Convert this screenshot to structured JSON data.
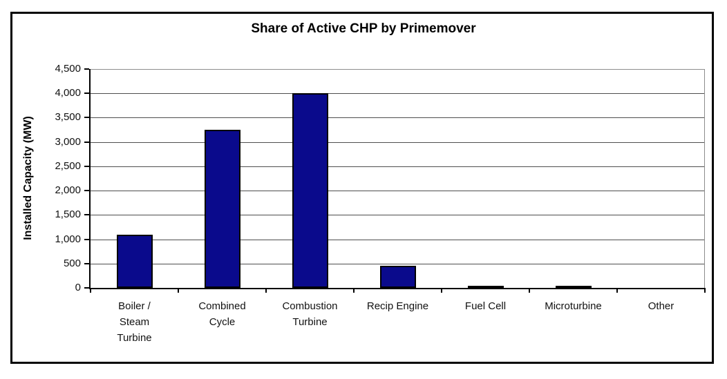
{
  "figure": {
    "background": "#ffffff",
    "frame_border_color": "#000000"
  },
  "chart_data": {
    "type": "bar",
    "title": "Share of Active CHP by Primemover",
    "xlabel": "",
    "ylabel": "Installed Capacity (MW)",
    "categories": [
      "Boiler /\nSteam\nTurbine",
      "Combined\nCycle",
      "Combustion\nTurbine",
      "Recip Engine",
      "Fuel Cell",
      "Microturbine",
      "Other"
    ],
    "values": [
      1100,
      3250,
      4000,
      450,
      40,
      40,
      0
    ],
    "ylim": [
      0,
      4500
    ],
    "ytick_step": 500,
    "ytick_labels": [
      "0",
      "500",
      "1,000",
      "1,500",
      "2,000",
      "2,500",
      "3,000",
      "3,500",
      "4,000",
      "4,500"
    ],
    "grid": true,
    "legend": "none",
    "bar_color": "#0a0a8c",
    "bar_border_color": "#000000",
    "gridline_color": "#4d4d4d",
    "axis_color": "#000000"
  }
}
